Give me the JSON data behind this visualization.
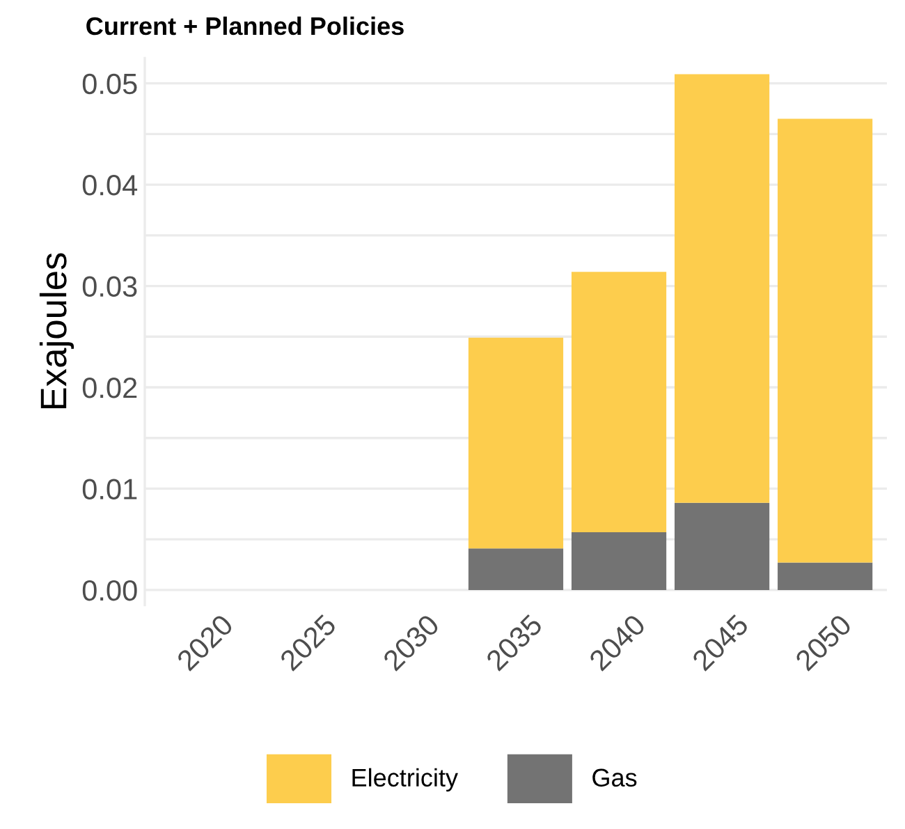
{
  "chart_data": {
    "type": "bar",
    "title": "Current + Planned Policies",
    "ylabel": "Exajoules",
    "categories": [
      "2020",
      "2025",
      "2030",
      "2035",
      "2040",
      "2045",
      "2050"
    ],
    "stacked": true,
    "series": [
      {
        "name": "Gas",
        "color": "#737373",
        "values": [
          0,
          0,
          0,
          0.0041,
          0.0057,
          0.0086,
          0.0027
        ]
      },
      {
        "name": "Electricity",
        "color": "#fdcd4d",
        "values": [
          0,
          0,
          0,
          0.0208,
          0.0257,
          0.0423,
          0.0438
        ]
      }
    ],
    "ylim": [
      -0.0015,
      0.0525
    ],
    "yticks": [
      {
        "value": 0,
        "label": "0.00"
      },
      {
        "value": 0.005,
        "label": null
      },
      {
        "value": 0.01,
        "label": "0.01"
      },
      {
        "value": 0.015,
        "label": null
      },
      {
        "value": 0.02,
        "label": "0.02"
      },
      {
        "value": 0.025,
        "label": null
      },
      {
        "value": 0.03,
        "label": "0.03"
      },
      {
        "value": 0.035,
        "label": null
      },
      {
        "value": 0.04,
        "label": "0.04"
      },
      {
        "value": 0.045,
        "label": null
      },
      {
        "value": 0.05,
        "label": "0.05"
      }
    ],
    "grid": "y",
    "legend": "bottom"
  }
}
